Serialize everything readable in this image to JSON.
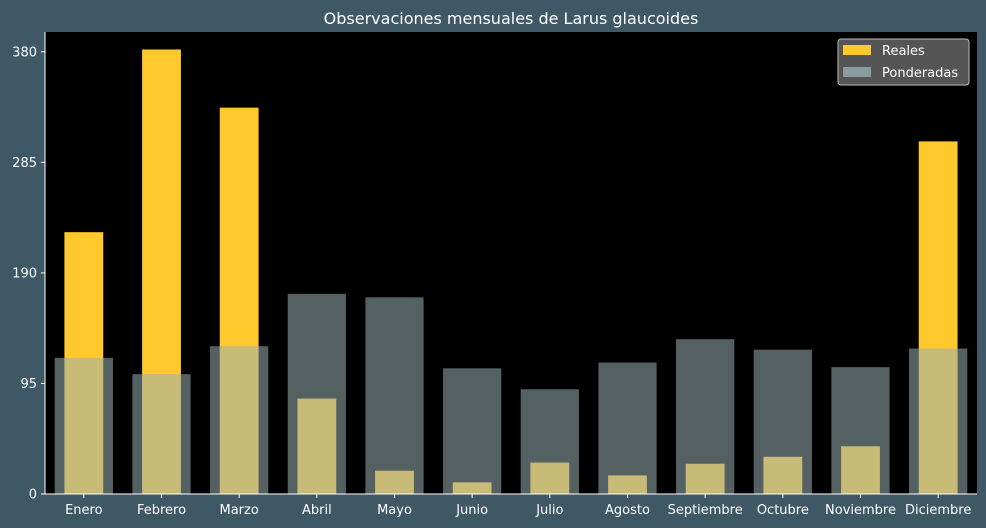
{
  "colors": {
    "figure_background": "#3f5866",
    "plot_background": "#000000",
    "reales": "#ffc82d",
    "ponderadas": "#9aaeb4",
    "ponderadas_opacity": 0.55,
    "text": "#ffffff",
    "legend_background": "#555555"
  },
  "chart_data": {
    "type": "bar",
    "title": "Observaciones mensuales de Larus glaucoides",
    "xlabel": "",
    "ylabel": "",
    "categories": [
      "Enero",
      "Febrero",
      "Marzo",
      "Abril",
      "Mayo",
      "Junio",
      "Julio",
      "Agosto",
      "Septiembre",
      "Octubre",
      "Noviembre",
      "Diciembre"
    ],
    "series": [
      {
        "name": "Reales",
        "values": [
          225,
          382,
          332,
          82,
          20,
          10,
          27,
          16,
          26,
          32,
          41,
          303
        ]
      },
      {
        "name": "Ponderadas",
        "values": [
          117,
          103,
          127,
          172,
          169,
          108,
          90,
          113,
          133,
          124,
          109,
          125
        ]
      }
    ],
    "yticks": [
      0,
      95,
      190,
      285,
      380
    ],
    "ylim": [
      0,
      397
    ],
    "grid": false,
    "legend_position": "top-right"
  }
}
